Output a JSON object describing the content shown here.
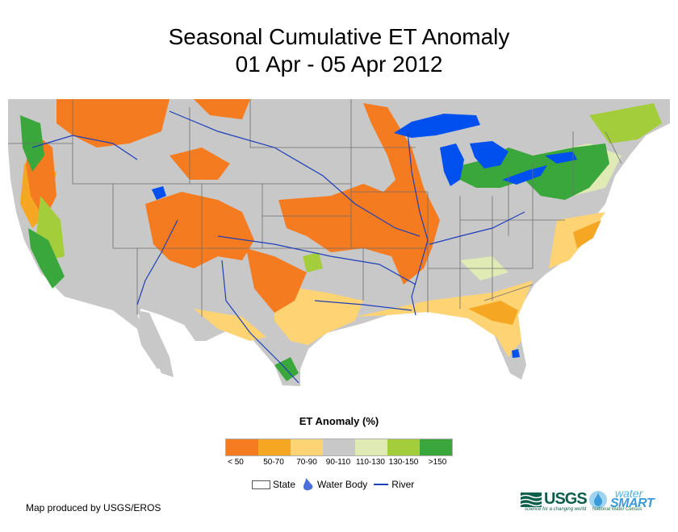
{
  "title_line1": "Seasonal Cumulative ET Anomaly",
  "title_line2": "01 Apr - 05 Apr 2012",
  "legend": {
    "title": "ET Anomaly (%)",
    "classes": [
      {
        "label": "< 50",
        "color": "#f47b20"
      },
      {
        "label": "50-70",
        "color": "#f5a623"
      },
      {
        "label": "70-90",
        "color": "#fed374"
      },
      {
        "label": "90-110",
        "color": "#c8c8c8"
      },
      {
        "label": "110-130",
        "color": "#dfeab4"
      },
      {
        "label": "130-150",
        "color": "#a4cd3c"
      },
      {
        "label": ">150",
        "color": "#3aa73c"
      }
    ]
  },
  "key": {
    "state": "State",
    "water_body": "Water Body",
    "river": "River"
  },
  "credit": "Map produced by USGS/EROS",
  "logos": {
    "usgs": "USGS",
    "usgs_tagline": "science for a changing world",
    "ws_water": "water",
    "ws_smart": "SMART",
    "ws_sub": "National Water Census"
  },
  "colors": {
    "water": "#0050f0",
    "river": "#1d3fb8",
    "state_border": "#6e6e6e"
  }
}
